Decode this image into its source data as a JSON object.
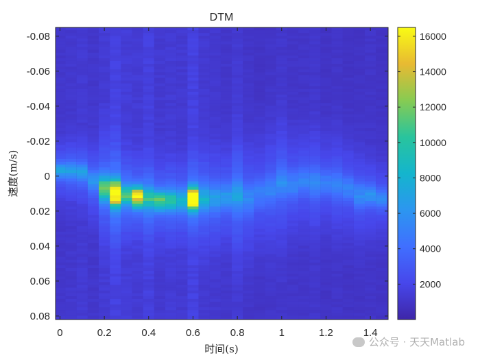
{
  "chart_data": {
    "type": "heatmap",
    "title": "DTM",
    "xlabel": "时间(s)",
    "ylabel": "速度(m/s)",
    "xlim": [
      -0.02,
      1.48
    ],
    "ylim": [
      -0.085,
      0.082
    ],
    "y_reversed": true,
    "x_ticks": [
      0,
      0.2,
      0.4,
      0.6,
      0.8,
      1,
      1.2,
      1.4
    ],
    "x_tick_labels": [
      "0",
      "0.2",
      "0.4",
      "0.6",
      "0.8",
      "1",
      "1.2",
      "1.4"
    ],
    "y_ticks": [
      -0.08,
      -0.06,
      -0.04,
      -0.02,
      0,
      0.02,
      0.04,
      0.06,
      0.08
    ],
    "y_tick_labels": [
      "-0.08",
      "-0.06",
      "-0.04",
      "-0.02",
      "0",
      "0.02",
      "0.04",
      "0.06",
      "0.08"
    ],
    "colormap": "parula",
    "colorbar": {
      "min": 0,
      "max": 16500,
      "ticks": [
        2000,
        4000,
        6000,
        8000,
        10000,
        12000,
        14000,
        16000
      ],
      "tick_labels": [
        "2000",
        "4000",
        "6000",
        "8000",
        "10000",
        "12000",
        "14000",
        "16000"
      ]
    },
    "time_frames": [
      0,
      0.05,
      0.1,
      0.15,
      0.2,
      0.25,
      0.3,
      0.35,
      0.4,
      0.45,
      0.5,
      0.55,
      0.6,
      0.65,
      0.7,
      0.75,
      0.8,
      0.85,
      0.9,
      0.95,
      1.0,
      1.05,
      1.1,
      1.15,
      1.2,
      1.25,
      1.3,
      1.35,
      1.4,
      1.45
    ],
    "velocity_bin_size": 0.0016,
    "background_level": 900,
    "frame_brightness": [
      1.2,
      1.3,
      1.4,
      1.2,
      1.5,
      1.9,
      1.6,
      1.5,
      1.8,
      1.4,
      1.5,
      1.4,
      1.9,
      1.4,
      1.3,
      1.2,
      1.4,
      1.1,
      1.0,
      1.1,
      1.2,
      1.1,
      1.1,
      1.2,
      1.0,
      1.1,
      1.0,
      1.0,
      1.1,
      1.0
    ],
    "ridge_center": [
      -0.003,
      -0.003,
      -0.002,
      0.003,
      0.007,
      0.01,
      0.011,
      0.012,
      0.013,
      0.014,
      0.014,
      0.014,
      0.013,
      0.013,
      0.013,
      0.012,
      0.011,
      0.013,
      0.01,
      0.008,
      0.004,
      0.005,
      0.003,
      0.004,
      0.004,
      0.005,
      0.007,
      0.011,
      0.011,
      0.013
    ],
    "ridge_peak": [
      3800,
      3600,
      3400,
      3000,
      7500,
      13500,
      6500,
      12000,
      5500,
      8000,
      6000,
      5000,
      15500,
      4500,
      3500,
      3200,
      3200,
      2600,
      2200,
      2200,
      2600,
      2400,
      2200,
      2400,
      2200,
      2300,
      2600,
      3000,
      3200,
      2600
    ],
    "ridge_width": [
      0.003,
      0.003,
      0.003,
      0.004,
      0.005,
      0.005,
      0.004,
      0.004,
      0.004,
      0.004,
      0.004,
      0.004,
      0.004,
      0.005,
      0.005,
      0.005,
      0.006,
      0.006,
      0.006,
      0.006,
      0.006,
      0.005,
      0.005,
      0.005,
      0.005,
      0.005,
      0.005,
      0.005,
      0.004,
      0.004
    ]
  },
  "watermark": {
    "text": "公众号 · 天天Matlab",
    "icon": "wechat-icon"
  }
}
